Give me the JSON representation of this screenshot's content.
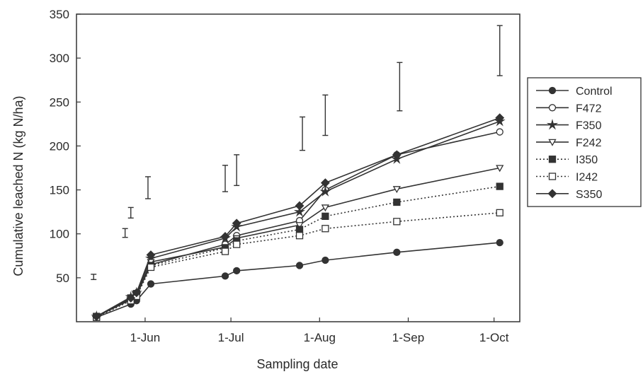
{
  "chart_data": {
    "type": "line",
    "title": "",
    "xlabel": "Sampling date",
    "ylabel": "Cumulative leached N (kg N/ha)",
    "ylim": [
      0,
      350
    ],
    "yticks": [
      50,
      100,
      150,
      200,
      250,
      300,
      350
    ],
    "xlim": [
      "2000-05-08",
      "2000-10-10"
    ],
    "xticks": [
      {
        "date": "2000-06-01",
        "label": "1-Jun"
      },
      {
        "date": "2000-07-01",
        "label": "1-Jul"
      },
      {
        "date": "2000-08-01",
        "label": "1-Aug"
      },
      {
        "date": "2000-09-01",
        "label": "1-Sep"
      },
      {
        "date": "2000-10-01",
        "label": "1-Oct"
      }
    ],
    "x": [
      "2000-05-15",
      "2000-05-27",
      "2000-05-29",
      "2000-06-03",
      "2000-06-29",
      "2000-07-03",
      "2000-07-25",
      "2000-08-03",
      "2000-08-28",
      "2000-10-03"
    ],
    "legend_position": "right",
    "series": [
      {
        "name": "Control",
        "marker": "filled-circle",
        "line": "solid",
        "color": "#333333",
        "values": [
          5,
          20,
          24,
          43,
          52,
          58,
          64,
          70,
          79,
          90
        ]
      },
      {
        "name": "F472",
        "marker": "open-circle",
        "line": "solid",
        "color": "#333333",
        "values": [
          6,
          25,
          30,
          65,
          88,
          98,
          115,
          150,
          190,
          216
        ]
      },
      {
        "name": "F350",
        "marker": "filled-star",
        "line": "solid",
        "color": "#333333",
        "values": [
          6,
          28,
          33,
          72,
          95,
          108,
          125,
          148,
          185,
          228
        ]
      },
      {
        "name": "F242",
        "marker": "open-triangle-down",
        "line": "solid",
        "color": "#333333",
        "values": [
          6,
          26,
          31,
          68,
          85,
          95,
          110,
          130,
          151,
          175
        ]
      },
      {
        "name": "I350",
        "marker": "filled-square",
        "line": "dotted",
        "color": "#333333",
        "values": [
          6,
          27,
          32,
          64,
          84,
          92,
          105,
          120,
          136,
          154
        ]
      },
      {
        "name": "I242",
        "marker": "open-square",
        "line": "dotted",
        "color": "#333333",
        "values": [
          5,
          24,
          29,
          62,
          80,
          88,
          98,
          106,
          114,
          124
        ]
      },
      {
        "name": "S350",
        "marker": "filled-diamond",
        "line": "solid",
        "color": "#333333",
        "values": [
          6,
          27,
          33,
          76,
          97,
          112,
          132,
          158,
          190,
          232
        ]
      }
    ],
    "error_bars": [
      {
        "x": "2000-05-14",
        "low": 48,
        "high": 54
      },
      {
        "x": "2000-05-25",
        "low": 96,
        "high": 106
      },
      {
        "x": "2000-05-27",
        "low": 118,
        "high": 130
      },
      {
        "x": "2000-06-02",
        "low": 140,
        "high": 165
      },
      {
        "x": "2000-06-29",
        "low": 148,
        "high": 178
      },
      {
        "x": "2000-07-03",
        "low": 155,
        "high": 190
      },
      {
        "x": "2000-07-26",
        "low": 195,
        "high": 233
      },
      {
        "x": "2000-08-03",
        "low": 212,
        "high": 258
      },
      {
        "x": "2000-08-29",
        "low": 240,
        "high": 295
      },
      {
        "x": "2000-10-03",
        "low": 280,
        "high": 337
      }
    ]
  }
}
